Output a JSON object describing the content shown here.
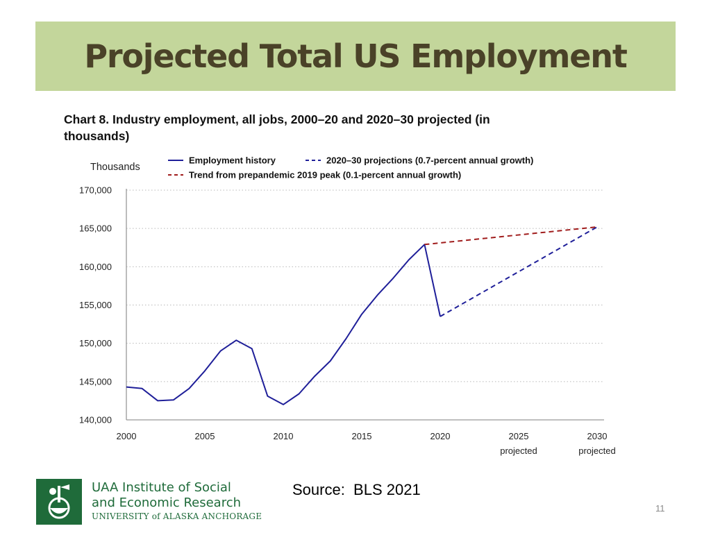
{
  "slide": {
    "title": "Projected Total US Employment",
    "source": "Source:  BLS 2021",
    "page_number": "11"
  },
  "logo": {
    "line1": "UAA Institute of Social",
    "line2": "and Economic Research",
    "line3": "UNIVERSITY of ALASKA ANCHORAGE",
    "color": "#1f6b3a"
  },
  "chart_data": {
    "type": "line",
    "title": "Chart 8. Industry employment, all jobs, 2000–20 and 2020–30 projected (in thousands)",
    "title_lines": [
      "Chart 8. Industry employment, all jobs, 2000–20 and 2020–30 projected (in",
      "thousands)"
    ],
    "ylabel": "Thousands",
    "xlabel": "",
    "xlim": [
      2000,
      2030
    ],
    "ylim": [
      140000,
      170000
    ],
    "x_ticks": [
      {
        "value": 2000,
        "label": "2000",
        "sublabel": ""
      },
      {
        "value": 2005,
        "label": "2005",
        "sublabel": ""
      },
      {
        "value": 2010,
        "label": "2010",
        "sublabel": ""
      },
      {
        "value": 2015,
        "label": "2015",
        "sublabel": ""
      },
      {
        "value": 2020,
        "label": "2020",
        "sublabel": ""
      },
      {
        "value": 2025,
        "label": "2025",
        "sublabel": "projected"
      },
      {
        "value": 2030,
        "label": "2030",
        "sublabel": "projected"
      }
    ],
    "y_ticks": [
      {
        "value": 140000,
        "label": "140,000"
      },
      {
        "value": 145000,
        "label": "145,000"
      },
      {
        "value": 150000,
        "label": "150,000"
      },
      {
        "value": 155000,
        "label": "155,000"
      },
      {
        "value": 160000,
        "label": "160,000"
      },
      {
        "value": 165000,
        "label": "165,000"
      },
      {
        "value": 170000,
        "label": "170,000"
      }
    ],
    "grid": true,
    "legend_position": "top",
    "series": [
      {
        "name": "Employment history",
        "color": "#1f1f99",
        "dash": "solid",
        "points": [
          [
            2000,
            144300
          ],
          [
            2001,
            144100
          ],
          [
            2002,
            142500
          ],
          [
            2003,
            142600
          ],
          [
            2004,
            144100
          ],
          [
            2005,
            146400
          ],
          [
            2006,
            149000
          ],
          [
            2007,
            150400
          ],
          [
            2008,
            149300
          ],
          [
            2009,
            143100
          ],
          [
            2010,
            142000
          ],
          [
            2011,
            143400
          ],
          [
            2012,
            145700
          ],
          [
            2013,
            147700
          ],
          [
            2014,
            150600
          ],
          [
            2015,
            153800
          ],
          [
            2016,
            156300
          ],
          [
            2017,
            158500
          ],
          [
            2018,
            160900
          ],
          [
            2019,
            162900
          ],
          [
            2020,
            153500
          ]
        ]
      },
      {
        "name": "2020–30 projections (0.7-percent annual growth)",
        "color": "#1f1f99",
        "dash": "dashed",
        "points": [
          [
            2020,
            153500
          ],
          [
            2030,
            165200
          ]
        ]
      },
      {
        "name": "Trend from prepandemic 2019 peak (0.1-percent annual growth)",
        "color": "#a01c1c",
        "dash": "dashed",
        "points": [
          [
            2019,
            162900
          ],
          [
            2030,
            165200
          ]
        ]
      }
    ]
  }
}
